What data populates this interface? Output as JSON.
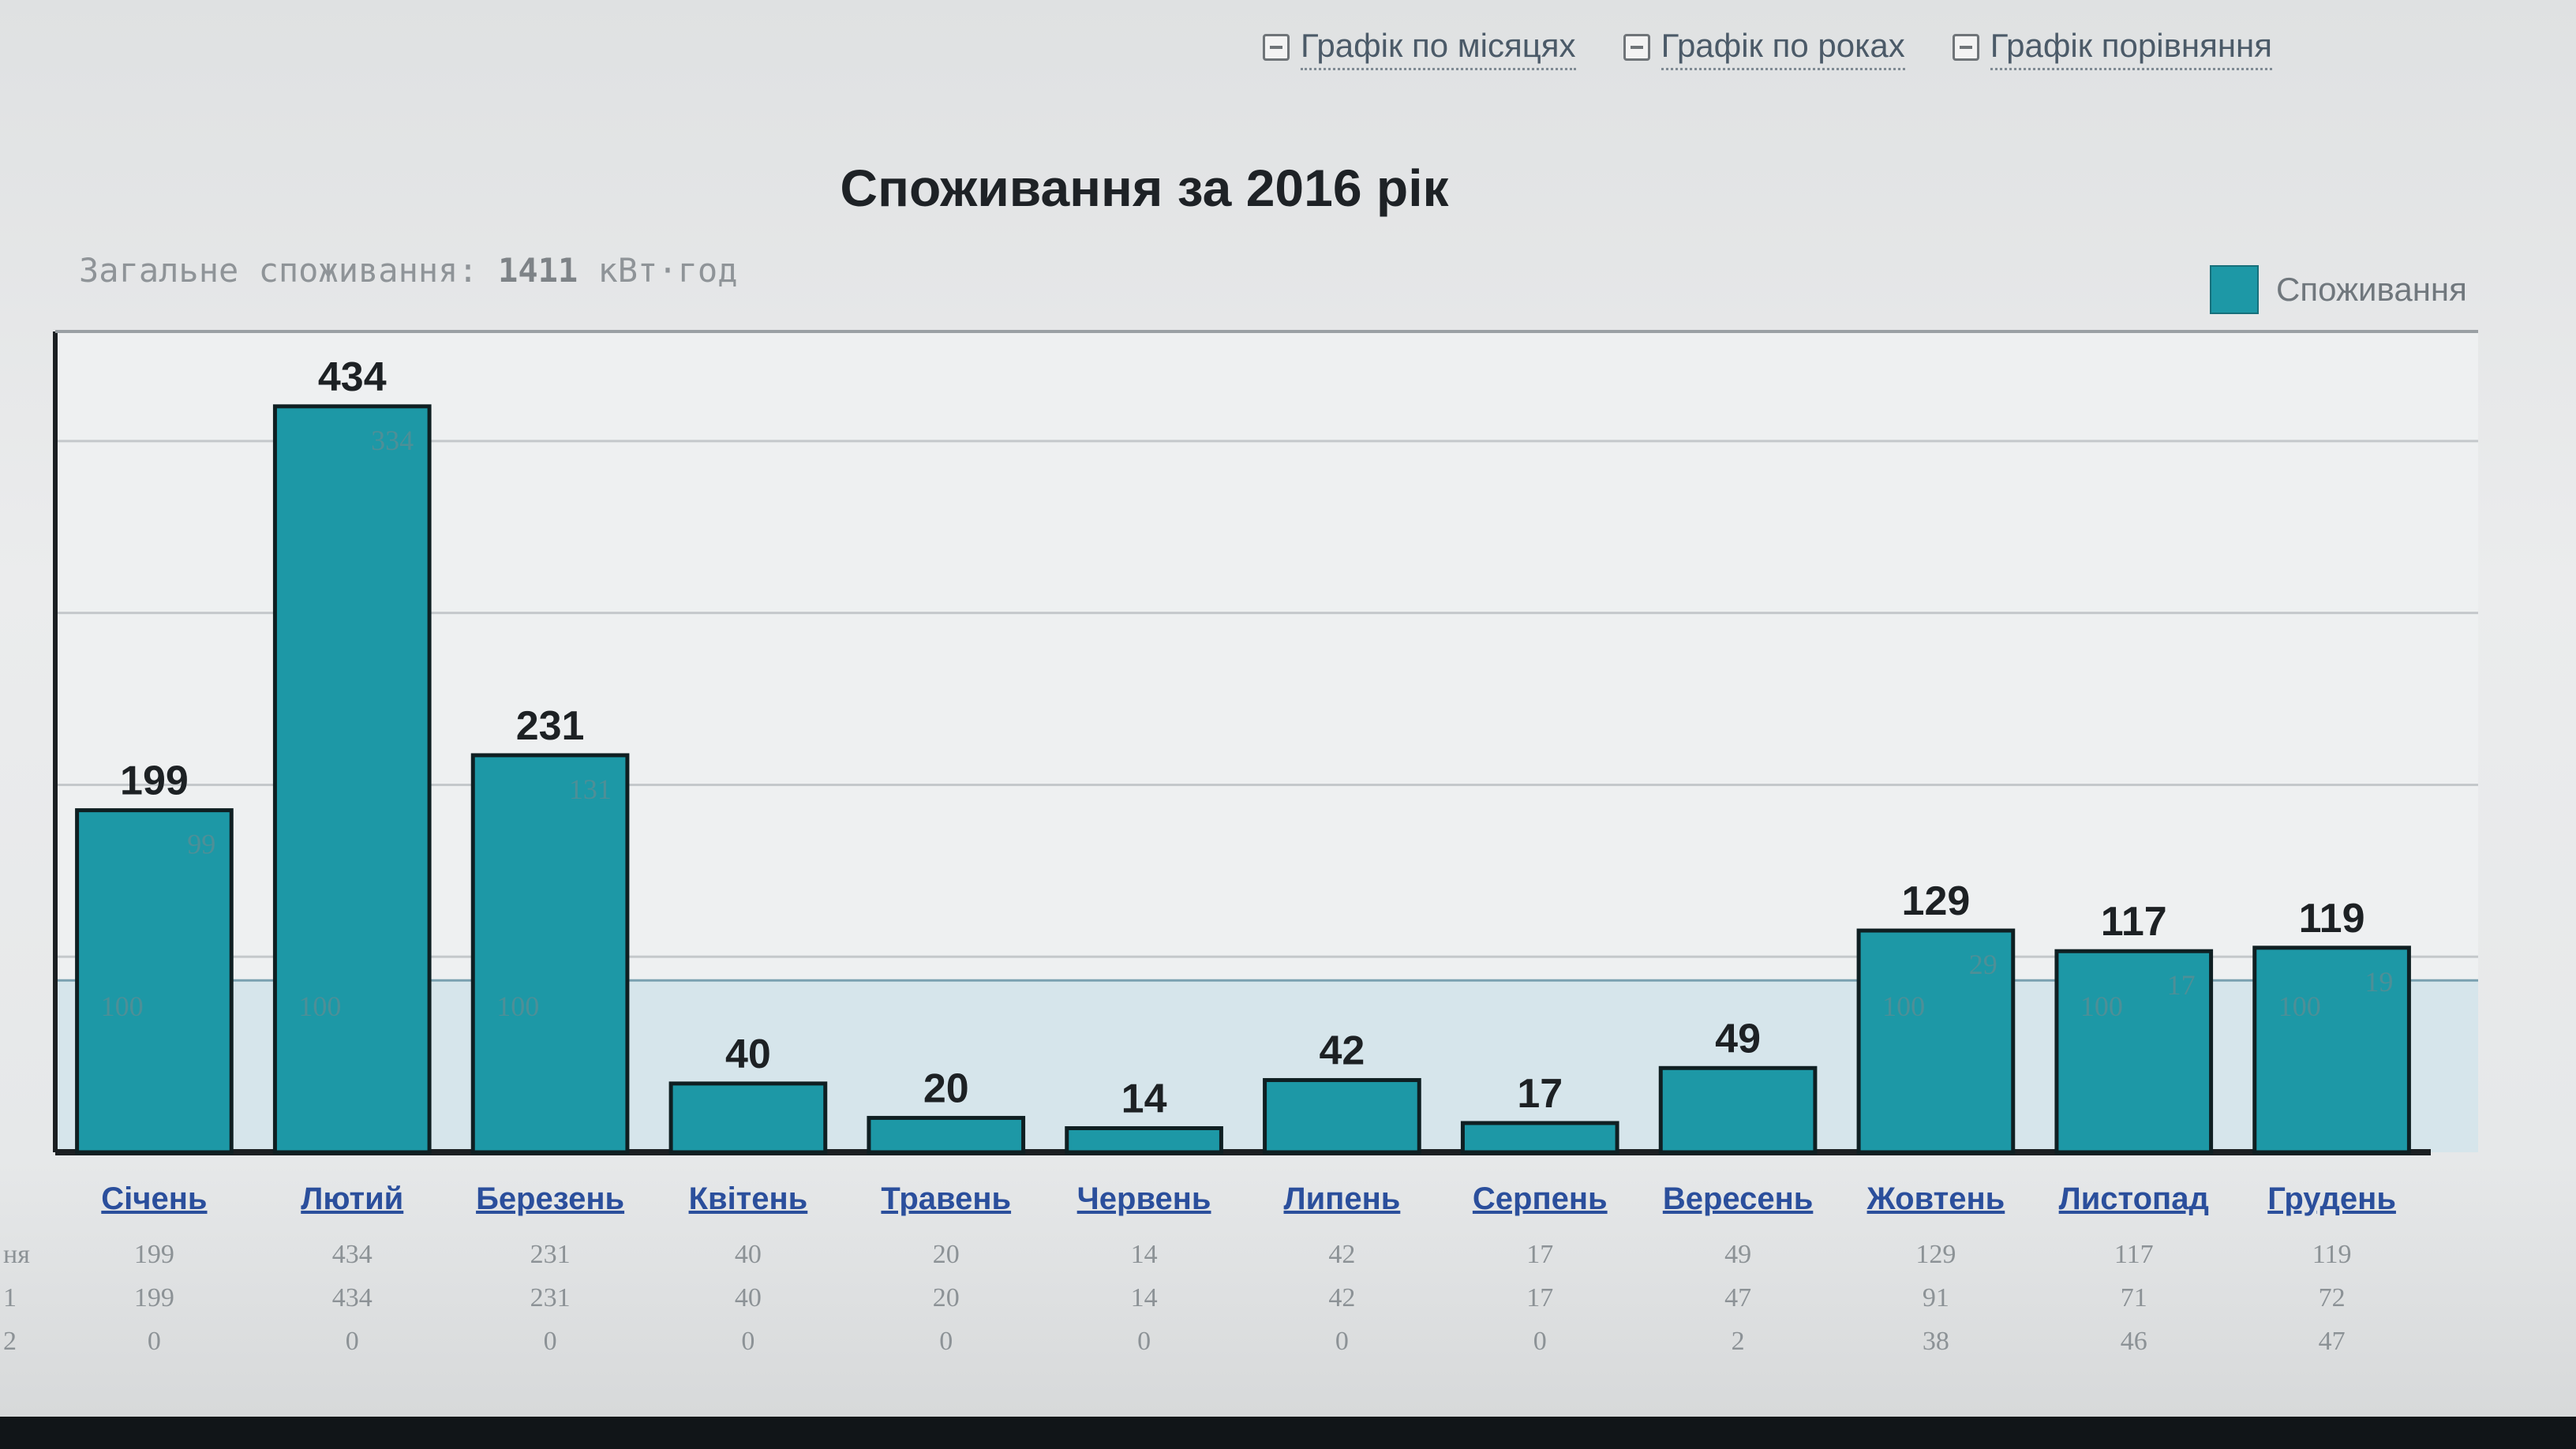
{
  "nav": {
    "by_months": "Графік по місяцях",
    "by_years": "Графік по роках",
    "comparison": "Графік порівняння"
  },
  "summary": {
    "label": "Загальне споживання:",
    "value": "1411",
    "unit": "кВт·год"
  },
  "colors": {
    "bar": "#1d98a6",
    "bar_border": "#0f1f22",
    "table_text": "#8c9296"
  },
  "chart_data": {
    "type": "bar",
    "title": "Споживання за 2016 рік",
    "categories": [
      "Січень",
      "Лютий",
      "Березень",
      "Квітень",
      "Травень",
      "Червень",
      "Липень",
      "Серпень",
      "Вересень",
      "Жовтень",
      "Листопад",
      "Грудень"
    ],
    "series": [
      {
        "name": "Споживання",
        "values": [
          199,
          434,
          231,
          40,
          20,
          14,
          42,
          17,
          49,
          129,
          117,
          119
        ]
      }
    ],
    "legend": "top-right",
    "grid": true,
    "ylim": [
      0,
      450
    ],
    "threshold": 100,
    "inner_labels": [
      [
        "100",
        "99"
      ],
      [
        "100",
        "334"
      ],
      [
        "100",
        "131"
      ],
      [],
      [],
      [],
      [],
      [],
      [],
      [
        "100",
        "29"
      ],
      [
        "100",
        "17"
      ],
      [
        "100",
        "19"
      ]
    ],
    "table_rows": [
      {
        "label": "ня",
        "values": [
          "199",
          "434",
          "231",
          "40",
          "20",
          "14",
          "42",
          "17",
          "49",
          "129",
          "117",
          "119"
        ]
      },
      {
        "label": "1",
        "values": [
          "199",
          "434",
          "231",
          "40",
          "20",
          "14",
          "42",
          "17",
          "47",
          "91",
          "71",
          "72"
        ]
      },
      {
        "label": "2",
        "values": [
          "0",
          "0",
          "0",
          "0",
          "0",
          "0",
          "0",
          "0",
          "2",
          "38",
          "46",
          "47"
        ]
      }
    ]
  }
}
